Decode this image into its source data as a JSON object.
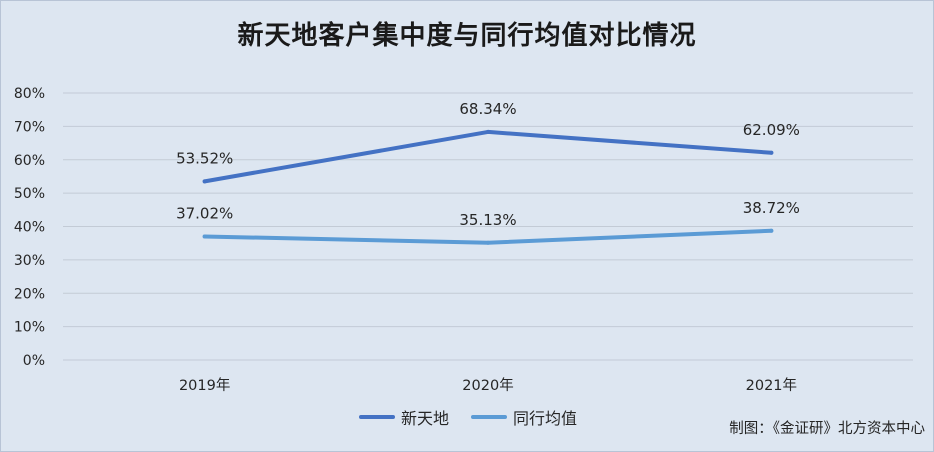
{
  "chart_data": {
    "type": "line",
    "title": "新天地客户集中度与同行均值对比情况",
    "categories": [
      "2019年",
      "2020年",
      "2021年"
    ],
    "series": [
      {
        "name": "新天地",
        "values": [
          53.52,
          68.34,
          62.09
        ],
        "labels": [
          "53.52%",
          "68.34%",
          "62.09%"
        ],
        "color": "#4472c4"
      },
      {
        "name": "同行均值",
        "values": [
          37.02,
          35.13,
          38.72
        ],
        "labels": [
          "37.02%",
          "35.13%",
          "38.72%"
        ],
        "color": "#5b9bd5"
      }
    ],
    "y_ticks": [
      "0%",
      "10%",
      "20%",
      "30%",
      "40%",
      "50%",
      "60%",
      "70%",
      "80%"
    ],
    "ylim": [
      0,
      80
    ],
    "grid": true,
    "legend_position": "bottom"
  },
  "source_note": "制图：《金证研》北方资本中心",
  "colors": {
    "background": "#dde6f1",
    "gridline": "#c3cbd6"
  }
}
